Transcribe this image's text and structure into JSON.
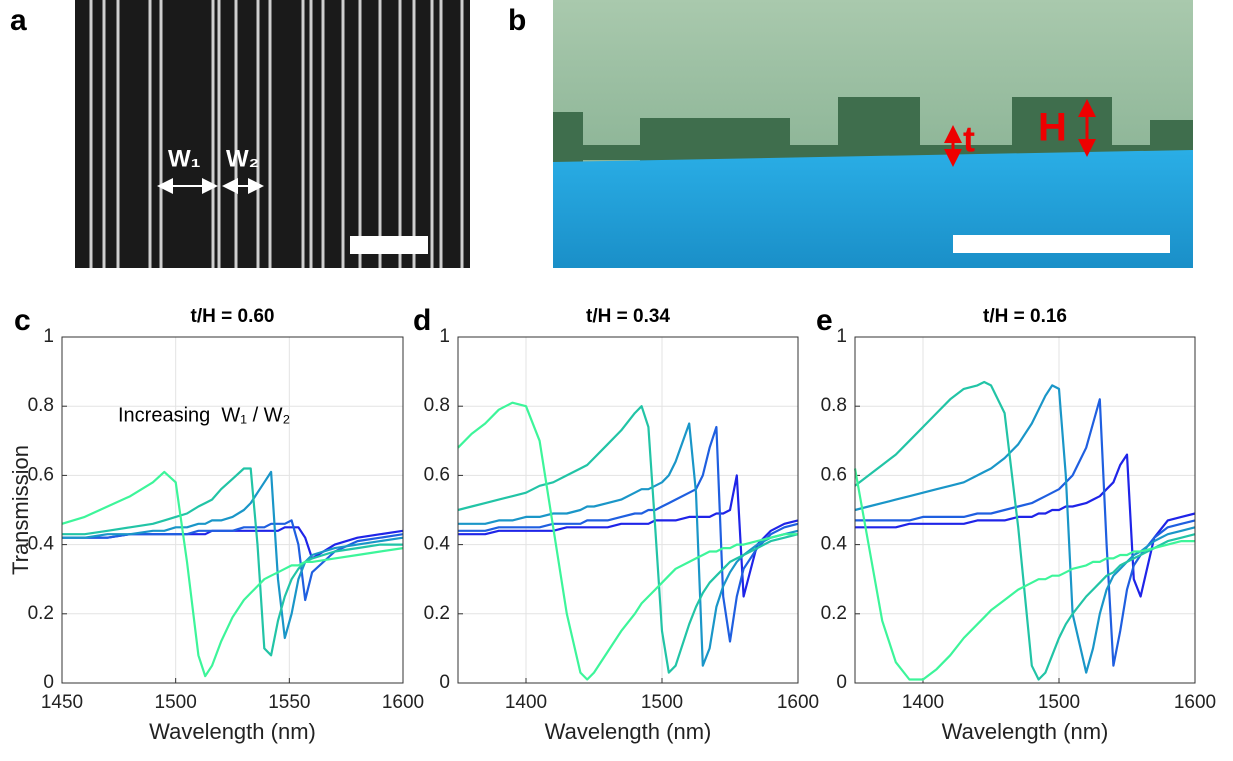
{
  "images": {
    "a": {
      "letter": "a",
      "labels": [
        "W₁",
        "W₂"
      ]
    },
    "b": {
      "letter": "b",
      "labels": [
        "t",
        "H"
      ]
    }
  },
  "chart_data": [
    {
      "type": "line",
      "panel_label": "c",
      "title": "t/H = 0.60",
      "xlabel": "Wavelength (nm)",
      "ylabel": "Transmission",
      "annotation": "Increasing  W₁ / W₂",
      "xlim": [
        1450,
        1600
      ],
      "xticks": [
        1450,
        1500,
        1550,
        1600
      ],
      "ylim": [
        0,
        1
      ],
      "yticks": [
        0,
        0.2,
        0.4,
        0.6,
        0.8,
        1
      ],
      "grid": true,
      "x": [
        1450,
        1460,
        1470,
        1480,
        1490,
        1495,
        1500,
        1505,
        1510,
        1513,
        1516,
        1520,
        1525,
        1530,
        1533,
        1536,
        1539,
        1542,
        1545,
        1548,
        1551,
        1554,
        1557,
        1560,
        1570,
        1580,
        1590,
        1600
      ],
      "series": [
        {
          "color": "#1f24e8",
          "values": [
            0.42,
            0.42,
            0.42,
            0.43,
            0.43,
            0.43,
            0.43,
            0.43,
            0.43,
            0.43,
            0.44,
            0.44,
            0.44,
            0.44,
            0.44,
            0.44,
            0.44,
            0.44,
            0.44,
            0.45,
            0.45,
            0.45,
            0.42,
            0.36,
            0.4,
            0.42,
            0.43,
            0.44
          ]
        },
        {
          "color": "#1f5fe0",
          "values": [
            0.42,
            0.42,
            0.42,
            0.43,
            0.43,
            0.43,
            0.43,
            0.43,
            0.44,
            0.44,
            0.44,
            0.44,
            0.44,
            0.45,
            0.45,
            0.45,
            0.45,
            0.46,
            0.46,
            0.46,
            0.47,
            0.4,
            0.24,
            0.32,
            0.38,
            0.41,
            0.42,
            0.43
          ]
        },
        {
          "color": "#1a96c8",
          "values": [
            0.42,
            0.42,
            0.43,
            0.43,
            0.44,
            0.44,
            0.45,
            0.45,
            0.46,
            0.46,
            0.47,
            0.47,
            0.48,
            0.5,
            0.52,
            0.55,
            0.58,
            0.61,
            0.3,
            0.13,
            0.2,
            0.3,
            0.35,
            0.37,
            0.39,
            0.4,
            0.41,
            0.42
          ]
        },
        {
          "color": "#22c4a6",
          "values": [
            0.43,
            0.43,
            0.44,
            0.45,
            0.46,
            0.47,
            0.48,
            0.49,
            0.51,
            0.52,
            0.53,
            0.56,
            0.59,
            0.62,
            0.62,
            0.4,
            0.1,
            0.08,
            0.18,
            0.25,
            0.3,
            0.33,
            0.35,
            0.36,
            0.38,
            0.39,
            0.4,
            0.4
          ]
        },
        {
          "color": "#3df59a",
          "values": [
            0.46,
            0.48,
            0.51,
            0.54,
            0.58,
            0.61,
            0.58,
            0.35,
            0.08,
            0.02,
            0.05,
            0.12,
            0.19,
            0.24,
            0.26,
            0.28,
            0.3,
            0.31,
            0.32,
            0.33,
            0.34,
            0.34,
            0.35,
            0.35,
            0.36,
            0.37,
            0.38,
            0.39
          ]
        }
      ]
    },
    {
      "type": "line",
      "panel_label": "d",
      "title": "t/H = 0.34",
      "xlabel": "Wavelength (nm)",
      "xlim": [
        1350,
        1600
      ],
      "xticks": [
        1400,
        1500,
        1600
      ],
      "ylim": [
        0,
        1
      ],
      "yticks": [
        0,
        0.2,
        0.4,
        0.6,
        0.8,
        1
      ],
      "grid": true,
      "x": [
        1350,
        1360,
        1370,
        1380,
        1390,
        1400,
        1410,
        1420,
        1430,
        1440,
        1445,
        1450,
        1460,
        1470,
        1480,
        1485,
        1490,
        1495,
        1500,
        1505,
        1510,
        1520,
        1525,
        1530,
        1535,
        1540,
        1545,
        1550,
        1555,
        1560,
        1570,
        1580,
        1590,
        1600
      ],
      "series": [
        {
          "color": "#1f24e8",
          "values": [
            0.43,
            0.43,
            0.43,
            0.44,
            0.44,
            0.44,
            0.44,
            0.44,
            0.45,
            0.45,
            0.45,
            0.45,
            0.45,
            0.46,
            0.46,
            0.46,
            0.46,
            0.47,
            0.47,
            0.47,
            0.47,
            0.48,
            0.48,
            0.48,
            0.48,
            0.49,
            0.49,
            0.5,
            0.6,
            0.25,
            0.4,
            0.44,
            0.46,
            0.47
          ]
        },
        {
          "color": "#1f5fe0",
          "values": [
            0.44,
            0.44,
            0.44,
            0.45,
            0.45,
            0.45,
            0.45,
            0.46,
            0.46,
            0.46,
            0.47,
            0.47,
            0.47,
            0.48,
            0.49,
            0.49,
            0.5,
            0.5,
            0.51,
            0.52,
            0.53,
            0.55,
            0.56,
            0.6,
            0.68,
            0.74,
            0.25,
            0.12,
            0.25,
            0.33,
            0.39,
            0.43,
            0.45,
            0.46
          ]
        },
        {
          "color": "#1a96c8",
          "values": [
            0.46,
            0.46,
            0.46,
            0.47,
            0.47,
            0.48,
            0.48,
            0.49,
            0.49,
            0.5,
            0.51,
            0.51,
            0.52,
            0.53,
            0.55,
            0.56,
            0.56,
            0.57,
            0.58,
            0.6,
            0.64,
            0.75,
            0.55,
            0.05,
            0.1,
            0.22,
            0.28,
            0.32,
            0.35,
            0.37,
            0.4,
            0.42,
            0.43,
            0.44
          ]
        },
        {
          "color": "#22c4a6",
          "values": [
            0.5,
            0.51,
            0.52,
            0.53,
            0.54,
            0.55,
            0.57,
            0.58,
            0.6,
            0.62,
            0.63,
            0.65,
            0.69,
            0.73,
            0.78,
            0.8,
            0.74,
            0.45,
            0.15,
            0.03,
            0.05,
            0.17,
            0.22,
            0.26,
            0.29,
            0.31,
            0.33,
            0.35,
            0.36,
            0.37,
            0.39,
            0.41,
            0.42,
            0.43
          ]
        },
        {
          "color": "#3df59a",
          "values": [
            0.68,
            0.72,
            0.75,
            0.79,
            0.81,
            0.8,
            0.7,
            0.45,
            0.2,
            0.03,
            0.01,
            0.03,
            0.09,
            0.15,
            0.2,
            0.23,
            0.25,
            0.27,
            0.29,
            0.31,
            0.33,
            0.35,
            0.36,
            0.37,
            0.38,
            0.38,
            0.39,
            0.39,
            0.4,
            0.4,
            0.41,
            0.42,
            0.43,
            0.43
          ]
        }
      ]
    },
    {
      "type": "line",
      "panel_label": "e",
      "title": "t/H = 0.16",
      "xlabel": "Wavelength (nm)",
      "xlim": [
        1350,
        1600
      ],
      "xticks": [
        1400,
        1500,
        1600
      ],
      "ylim": [
        0,
        1
      ],
      "yticks": [
        0,
        0.2,
        0.4,
        0.6,
        0.8,
        1
      ],
      "grid": true,
      "x": [
        1350,
        1360,
        1370,
        1380,
        1390,
        1400,
        1410,
        1420,
        1430,
        1440,
        1445,
        1450,
        1460,
        1470,
        1480,
        1485,
        1490,
        1495,
        1500,
        1505,
        1510,
        1520,
        1525,
        1530,
        1535,
        1540,
        1545,
        1550,
        1555,
        1560,
        1570,
        1580,
        1590,
        1600
      ],
      "series": [
        {
          "color": "#1f24e8",
          "values": [
            0.45,
            0.45,
            0.45,
            0.45,
            0.46,
            0.46,
            0.46,
            0.46,
            0.46,
            0.47,
            0.47,
            0.47,
            0.47,
            0.48,
            0.48,
            0.49,
            0.49,
            0.5,
            0.5,
            0.51,
            0.51,
            0.52,
            0.53,
            0.54,
            0.56,
            0.58,
            0.63,
            0.66,
            0.3,
            0.25,
            0.42,
            0.47,
            0.48,
            0.49
          ]
        },
        {
          "color": "#1f5fe0",
          "values": [
            0.47,
            0.47,
            0.47,
            0.47,
            0.47,
            0.48,
            0.48,
            0.48,
            0.48,
            0.49,
            0.49,
            0.49,
            0.5,
            0.51,
            0.52,
            0.53,
            0.54,
            0.55,
            0.56,
            0.58,
            0.6,
            0.68,
            0.75,
            0.82,
            0.4,
            0.05,
            0.15,
            0.27,
            0.34,
            0.37,
            0.42,
            0.45,
            0.46,
            0.47
          ]
        },
        {
          "color": "#1a96c8",
          "values": [
            0.5,
            0.51,
            0.52,
            0.53,
            0.54,
            0.55,
            0.56,
            0.57,
            0.58,
            0.6,
            0.61,
            0.62,
            0.65,
            0.69,
            0.75,
            0.79,
            0.83,
            0.86,
            0.85,
            0.6,
            0.2,
            0.03,
            0.1,
            0.2,
            0.27,
            0.31,
            0.33,
            0.35,
            0.37,
            0.38,
            0.41,
            0.43,
            0.44,
            0.45
          ]
        },
        {
          "color": "#22c4a6",
          "values": [
            0.57,
            0.6,
            0.63,
            0.66,
            0.7,
            0.74,
            0.78,
            0.82,
            0.85,
            0.86,
            0.87,
            0.86,
            0.78,
            0.45,
            0.05,
            0.01,
            0.03,
            0.08,
            0.13,
            0.17,
            0.2,
            0.25,
            0.27,
            0.29,
            0.31,
            0.32,
            0.34,
            0.35,
            0.36,
            0.37,
            0.39,
            0.41,
            0.42,
            0.43
          ]
        },
        {
          "color": "#3df59a",
          "values": [
            0.62,
            0.4,
            0.18,
            0.06,
            0.01,
            0.01,
            0.04,
            0.08,
            0.13,
            0.17,
            0.19,
            0.21,
            0.24,
            0.27,
            0.29,
            0.3,
            0.3,
            0.31,
            0.31,
            0.32,
            0.33,
            0.34,
            0.35,
            0.35,
            0.36,
            0.36,
            0.37,
            0.37,
            0.38,
            0.38,
            0.39,
            0.4,
            0.41,
            0.41
          ]
        }
      ]
    }
  ]
}
